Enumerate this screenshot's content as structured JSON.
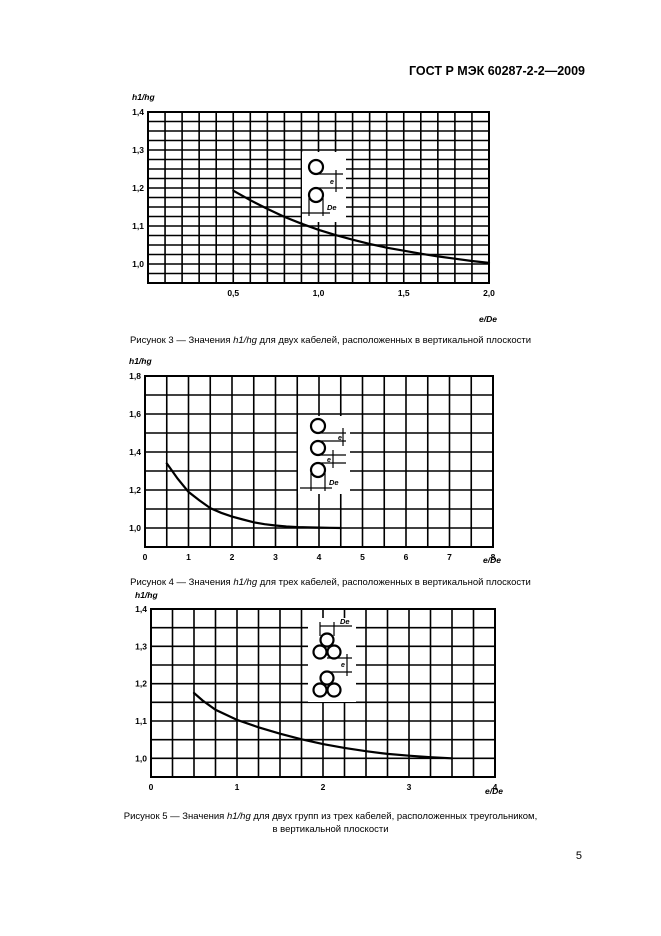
{
  "header": "ГОСТ Р МЭК 60287-2-2—2009",
  "page_number": "5",
  "colors": {
    "ink": "#000000",
    "paper": "#ffffff"
  },
  "figures": [
    {
      "caption_prefix": "Рисунок 3 — Значения",
      "caption_symbol": "h1/hg",
      "caption_suffix": "для двух кабелей, расположенных в вертикальной плоскости",
      "caption_line2": ""
    },
    {
      "caption_prefix": "Рисунок 4 — Значения",
      "caption_symbol": "h1/hg",
      "caption_suffix": "для трех кабелей, расположенных в вертикальной плоскости",
      "caption_line2": ""
    },
    {
      "caption_prefix": "Рисунок 5 — Значения",
      "caption_symbol": "h1/hg",
      "caption_suffix": "для двух групп из трех кабелей, расположенных треугольником,",
      "caption_line2": "в вертикальной плоскости"
    }
  ],
  "chart_data": [
    {
      "type": "line",
      "ylabel": "h1/hg",
      "xlabel": "e/De",
      "xlim": [
        0,
        2.0
      ],
      "ylim": [
        0.95,
        1.4
      ],
      "grid": true,
      "xticks": [
        0.5,
        1.0,
        1.5,
        2.0
      ],
      "xtick_labels": [
        "0,5",
        "1,0",
        "1,5",
        "2,0"
      ],
      "yticks": [
        1.0,
        1.1,
        1.2,
        1.3,
        1.4
      ],
      "ytick_labels": [
        "1,0",
        "1,1",
        "1,2",
        "1,3",
        "1,4"
      ],
      "inset_labels": [
        "e",
        "De"
      ],
      "series": [
        {
          "x": [
            0.5,
            0.6,
            0.7,
            0.8,
            0.9,
            1.0,
            1.1,
            1.2,
            1.3,
            1.4,
            1.5,
            1.6,
            1.7,
            1.8,
            1.9,
            2.0
          ],
          "y": [
            1.193,
            1.168,
            1.145,
            1.124,
            1.106,
            1.09,
            1.076,
            1.064,
            1.053,
            1.043,
            1.035,
            1.027,
            1.02,
            1.014,
            1.008,
            1.003
          ]
        }
      ]
    },
    {
      "type": "line",
      "ylabel": "h1/hg",
      "xlabel": "e/De",
      "xlim": [
        0,
        8
      ],
      "ylim": [
        0.9,
        1.8
      ],
      "grid": true,
      "xticks": [
        0,
        1,
        2,
        3,
        4,
        5,
        6,
        7,
        8
      ],
      "xtick_labels": [
        "0",
        "1",
        "2",
        "3",
        "4",
        "5",
        "6",
        "7",
        "8"
      ],
      "yticks": [
        1.0,
        1.2,
        1.4,
        1.6,
        1.8
      ],
      "ytick_labels": [
        "1,0",
        "1,2",
        "1,4",
        "1,6",
        "1,8"
      ],
      "inset_labels": [
        "e",
        "e",
        "De"
      ],
      "series": [
        {
          "x": [
            0.5,
            0.75,
            1.0,
            1.25,
            1.5,
            1.75,
            2.0,
            2.25,
            2.5,
            2.75,
            3.0,
            3.25,
            3.5,
            3.75,
            4.0,
            4.25,
            4.5
          ],
          "y": [
            1.34,
            1.26,
            1.19,
            1.145,
            1.105,
            1.08,
            1.06,
            1.045,
            1.03,
            1.02,
            1.013,
            1.008,
            1.005,
            1.003,
            1.002,
            1.001,
            1.0
          ]
        }
      ]
    },
    {
      "type": "line",
      "ylabel": "h1/hg",
      "xlabel": "e/De",
      "xlim": [
        0,
        4
      ],
      "ylim": [
        0.95,
        1.4
      ],
      "grid": true,
      "xticks": [
        0,
        1,
        2,
        3,
        4
      ],
      "xtick_labels": [
        "0",
        "1",
        "2",
        "3",
        "4"
      ],
      "yticks": [
        1.0,
        1.1,
        1.2,
        1.3,
        1.4
      ],
      "ytick_labels": [
        "1,0",
        "1,1",
        "1,2",
        "1,3",
        "1,4"
      ],
      "inset_labels": [
        "De",
        "e"
      ],
      "series": [
        {
          "x": [
            0.5,
            0.6,
            0.75,
            1.0,
            1.25,
            1.5,
            1.75,
            2.0,
            2.25,
            2.5,
            2.75,
            3.0,
            3.25,
            3.5
          ],
          "y": [
            1.175,
            1.155,
            1.13,
            1.103,
            1.083,
            1.066,
            1.051,
            1.038,
            1.028,
            1.019,
            1.012,
            1.007,
            1.003,
            1.0
          ]
        }
      ]
    }
  ]
}
